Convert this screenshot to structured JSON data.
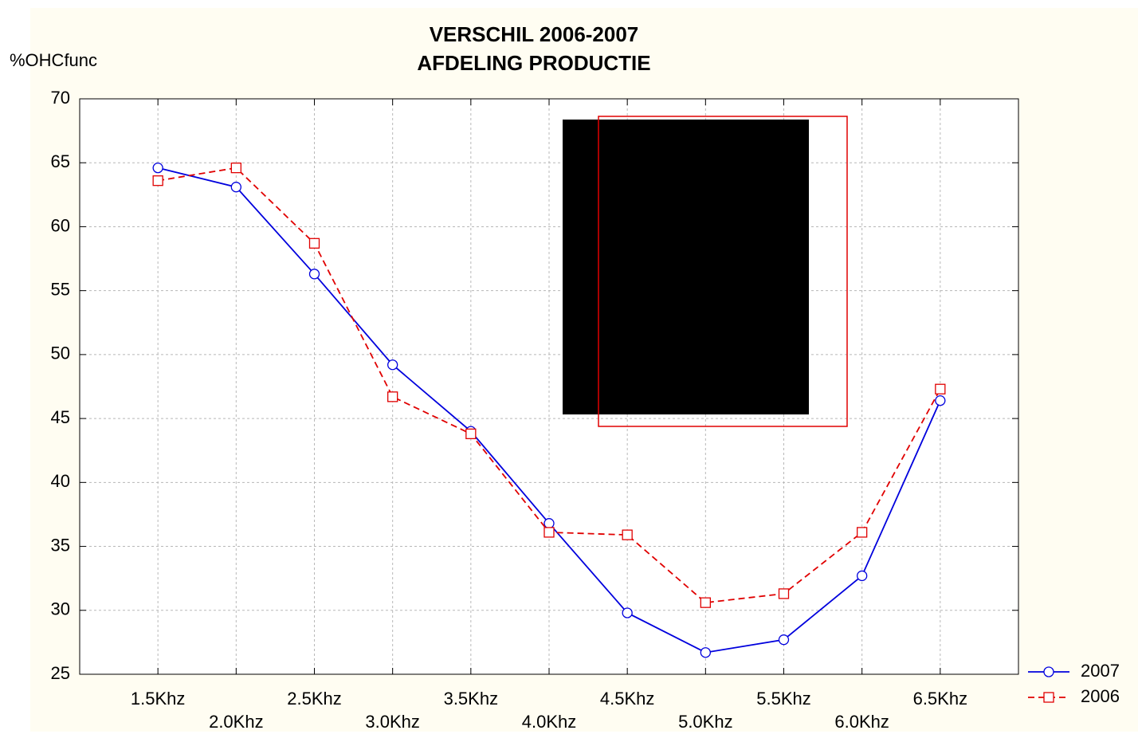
{
  "chart_data": {
    "type": "line",
    "title": "VERSCHIL 2006-2007",
    "subtitle": "AFDELING PRODUCTIE",
    "y_label": "%OHCfunc",
    "categories": [
      "1.5Khz",
      "2.0Khz",
      "2.5Khz",
      "3.0Khz",
      "3.5Khz",
      "4.0Khz",
      "4.5Khz",
      "5.0Khz",
      "5.5Khz",
      "6.0Khz",
      "6.5Khz"
    ],
    "series": [
      {
        "name": "2007",
        "color": "#0000dd",
        "marker": "circle",
        "dash": false,
        "values": [
          64.6,
          63.1,
          56.3,
          49.2,
          44.0,
          36.8,
          29.8,
          26.7,
          27.7,
          32.7,
          46.4
        ]
      },
      {
        "name": "2006",
        "color": "#e00000",
        "marker": "square",
        "dash": true,
        "values": [
          63.6,
          64.6,
          58.7,
          46.7,
          43.8,
          36.1,
          35.9,
          30.6,
          31.3,
          36.1,
          47.3
        ]
      }
    ],
    "ylim": [
      25,
      70
    ],
    "yticks": [
      25,
      30,
      35,
      40,
      45,
      50,
      55,
      60,
      65,
      70
    ],
    "grid": true,
    "legend": "bottom-right"
  }
}
